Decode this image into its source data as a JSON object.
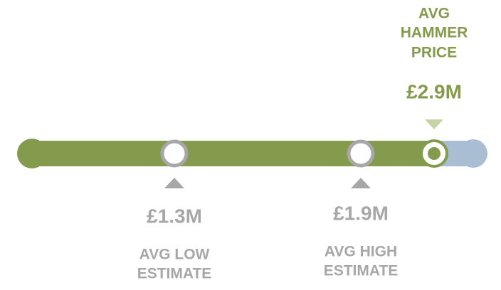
{
  "markers": [
    {
      "value": "£1.3M",
      "label_lines": [
        "AVG LOW",
        "ESTIMATE"
      ]
    },
    {
      "value": "£1.9M",
      "label_lines": [
        "AVG HIGH",
        "ESTIMATE"
      ]
    },
    {
      "value": "£2.9M",
      "label_lines": [
        "AVG",
        "HAMMER",
        "PRICE"
      ]
    }
  ]
}
